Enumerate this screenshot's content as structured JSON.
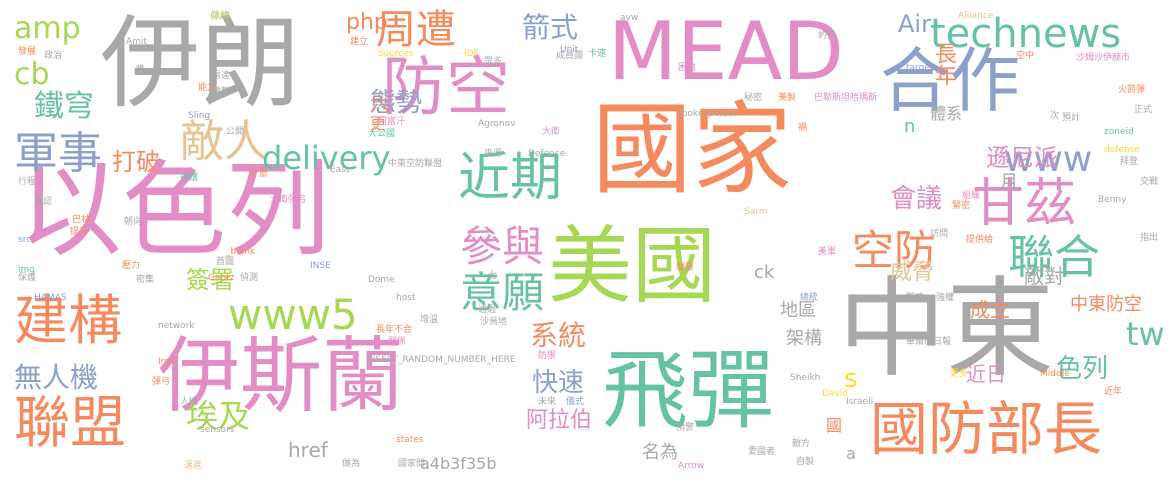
{
  "palette": {
    "gray": "#a8a8a8",
    "orange": "#f58a5e",
    "pink": "#e28dc5",
    "green": "#66c2a5",
    "lime": "#a6d854",
    "blue": "#8da0cb",
    "yellow": "#ffd92f",
    "tan": "#e5c494"
  },
  "words": [
    "國家",
    "以色列",
    "中東",
    "伊朗",
    "MEAD",
    "美國",
    "伊斯蘭",
    "飛彈",
    "合作",
    "防空",
    "國防部長",
    "聯盟",
    "建構",
    "technews",
    "近期",
    "甘茲",
    "聯合",
    "空防",
    "參與",
    "意願",
    "www5",
    "www",
    "軍事",
    "敵人",
    "delivery",
    "周遭",
    "鐵穹",
    "威脅",
    "tw",
    "無人機",
    "色列",
    "埃及",
    "快速",
    "阿拉伯",
    "遜尼派",
    "系統",
    "會議",
    "箭式",
    "態勢",
    "php",
    "amp",
    "cb",
    "Air",
    "長年",
    "打破",
    "簽署",
    "href",
    "a4b3f35b",
    "ck",
    "s",
    "中東防空",
    "地區",
    "架構",
    "近日",
    "名為",
    "成立",
    "敵對",
    "月",
    "體系",
    "n",
    "六",
    "更",
    "國",
    "a",
    "條約",
    "政治",
    "發展",
    "Amit",
    "能力",
    "Gulf",
    "建立",
    "Sources",
    "IDF",
    "卡速",
    "avw",
    "Alliance",
    "約旦",
    "空中",
    "target",
    "沙姆沙伊赫市",
    "Unit",
    "成員國",
    "眾多",
    "困難",
    "唯一",
    "雷達",
    "撤離",
    "Sling",
    "秘密",
    "美製",
    "巴勒斯坦哈瑪斯",
    "火箭彈",
    "正式",
    "預計",
    "公開",
    "阿富汗",
    "大公國",
    "Agronov",
    "大衛",
    "Spokesperson",
    "禍",
    "次",
    "zoneid",
    "defense",
    "行程",
    "採購",
    "什麼",
    "來源",
    "Defence",
    "中東空防聯盟",
    "East",
    "拜登",
    "交戰",
    "確認",
    "巴林",
    "提升",
    "朝向",
    "大衛彈弓",
    "組織",
    "緊密",
    "訪問",
    "提供給",
    "Benny",
    "src",
    "Sarm",
    "指出",
    "img",
    "壓力",
    "首圖",
    "_blank",
    "INSE",
    "Dome",
    "開發",
    "美軍",
    "保護",
    "HAMAS",
    "密集",
    "Gantz",
    "偵測",
    "七",
    "host",
    "增溫",
    "通過",
    "戰機",
    "強權",
    "總統",
    "network",
    "長年不合",
    "沙烏地",
    "關係",
    "INSERT_RANDOM_NUMBER_HERE",
    "防禦",
    "華爾街日報",
    "Iron",
    "彈弓",
    "Sheikh",
    "更多",
    "Middle",
    "近年",
    "人機",
    "未來",
    "儀式",
    "Israeli",
    "David",
    "sensors",
    "預警",
    "states",
    "做為",
    "國家間",
    "邁進",
    "Arrow",
    "愛國者",
    "自製",
    "敵方",
    "六國"
  ]
}
